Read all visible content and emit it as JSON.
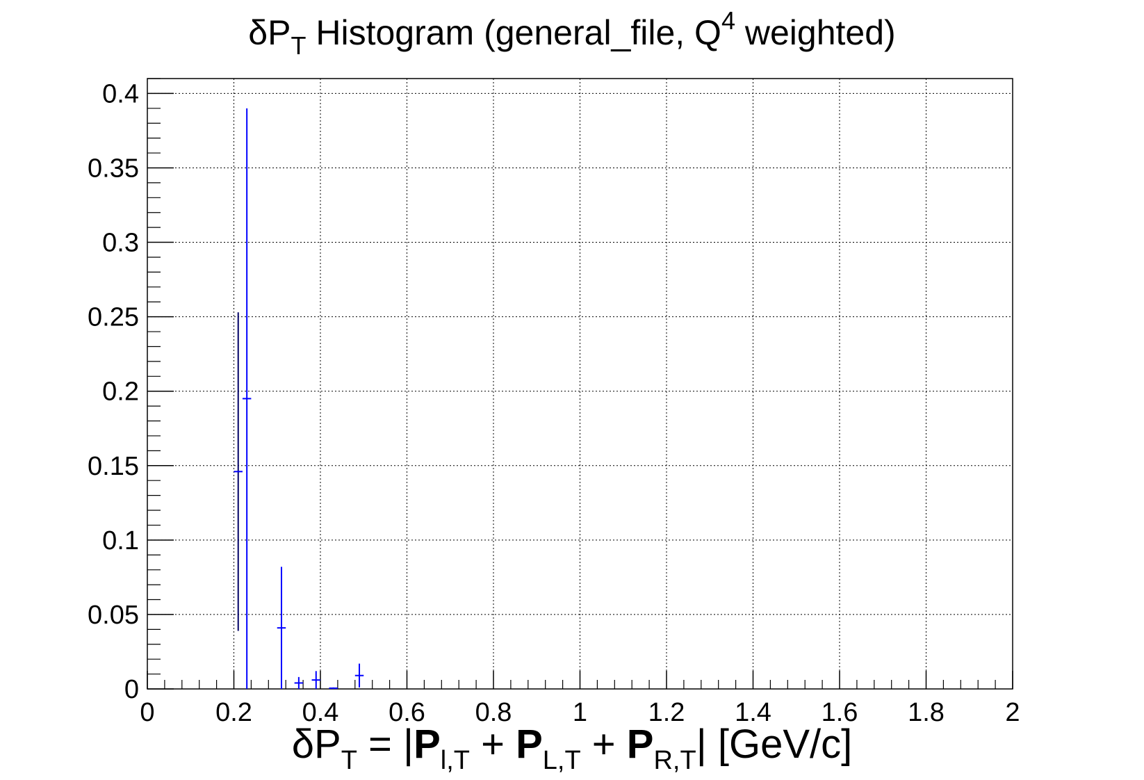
{
  "chart_data": {
    "type": "scatter",
    "title": {
      "main_prefix": "δP",
      "main_sub": "T",
      "main_mid": " Histogram (general_file, Q",
      "main_sup": "4",
      "main_suffix": " weighted)"
    },
    "xlabel": {
      "p1": "δP",
      "s1": "T",
      "p2": " = |",
      "b1": "P",
      "s2": "l,T",
      "p3": " + ",
      "b2": "P",
      "s3": "L,T",
      "p4": " + ",
      "b3": "P",
      "s4": "R,T",
      "p5": "| [GeV/c]"
    },
    "ylabel": "",
    "xlim": [
      0,
      2
    ],
    "ylim": [
      0,
      0.41
    ],
    "grid": true,
    "x_ticks": [
      "0",
      "0.2",
      "0.4",
      "0.6",
      "0.8",
      "1",
      "1.2",
      "1.4",
      "1.6",
      "1.8",
      "2"
    ],
    "y_ticks": [
      "0",
      "0.05",
      "0.1",
      "0.15",
      "0.2",
      "0.25",
      "0.3",
      "0.35",
      "0.4"
    ],
    "series": [
      {
        "color": "#0000ff",
        "bin_width": 0.02,
        "points": [
          {
            "x": 0.21,
            "y": 0.146,
            "err": 0.107
          },
          {
            "x": 0.23,
            "y": 0.195,
            "err": 0.195
          },
          {
            "x": 0.31,
            "y": 0.041,
            "err": 0.041
          },
          {
            "x": 0.35,
            "y": 0.004,
            "err": 0.004
          },
          {
            "x": 0.39,
            "y": 0.006,
            "err": 0.006
          },
          {
            "x": 0.43,
            "y": 0.0005,
            "err": 0.0005
          },
          {
            "x": 0.49,
            "y": 0.009,
            "err": 0.008
          }
        ]
      }
    ],
    "error_bar_colors": [
      "#000066",
      "#0000ff",
      "#0000ff",
      "#0000ff",
      "#0000ff",
      "#0000ff",
      "#0000ff"
    ]
  }
}
